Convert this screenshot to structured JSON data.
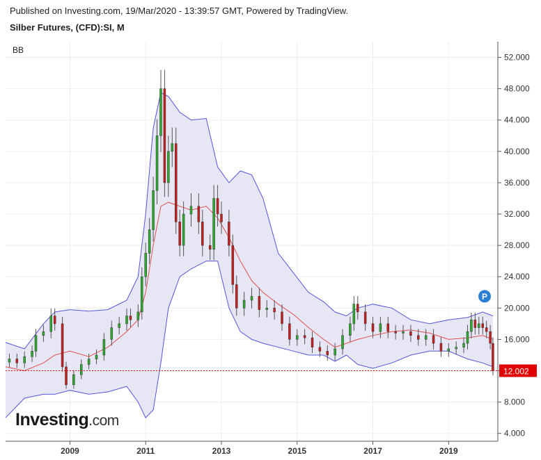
{
  "header": {
    "published": "Published on Investing.com, 19/Mar/2020 - 13:39:57 GMT, Powered by TradingView.",
    "symbol": "Silber Futures, (CFD):SI, M"
  },
  "indicator_label": "BB",
  "logo": {
    "main": "Investing",
    "suffix": ".com"
  },
  "badge_label": "P",
  "colors": {
    "up": "#2eaa2e",
    "down": "#c81e1e",
    "band": "#5555dd",
    "band_fill": "#e6e6f5",
    "basis": "#e05050",
    "price_line": "#e00000"
  },
  "chart_data": {
    "type": "candlestick",
    "title": "Silber Futures, (CFD):SI, M",
    "interval": "monthly",
    "x_range": [
      2007.3,
      2020.3
    ],
    "ylim": [
      3,
      54
    ],
    "yticks": [
      "4.000",
      "8.000",
      "12.000",
      "16.000",
      "20.000",
      "24.000",
      "28.000",
      "32.000",
      "36.000",
      "40.000",
      "44.000",
      "48.000",
      "52.000"
    ],
    "xticks": [
      "2009",
      "2011",
      "2013",
      "2015",
      "2017",
      "2019"
    ],
    "last_price": "12.002",
    "grid": true,
    "close_series": {
      "x": [
        2007.4,
        2007.6,
        2007.8,
        2008.0,
        2008.1,
        2008.3,
        2008.5,
        2008.6,
        2008.8,
        2008.9,
        2009.1,
        2009.3,
        2009.5,
        2009.7,
        2009.9,
        2010.1,
        2010.3,
        2010.5,
        2010.6,
        2010.8,
        2010.9,
        2011.0,
        2011.1,
        2011.2,
        2011.3,
        2011.4,
        2011.5,
        2011.6,
        2011.7,
        2011.8,
        2011.9,
        2012.0,
        2012.2,
        2012.4,
        2012.5,
        2012.7,
        2012.8,
        2012.9,
        2013.0,
        2013.2,
        2013.3,
        2013.4,
        2013.6,
        2013.8,
        2014.0,
        2014.2,
        2014.4,
        2014.6,
        2014.8,
        2015.0,
        2015.2,
        2015.4,
        2015.6,
        2015.8,
        2016.0,
        2016.2,
        2016.4,
        2016.5,
        2016.6,
        2016.8,
        2017.0,
        2017.2,
        2017.4,
        2017.6,
        2017.8,
        2018.0,
        2018.2,
        2018.4,
        2018.6,
        2018.8,
        2019.0,
        2019.2,
        2019.4,
        2019.5,
        2019.6,
        2019.7,
        2019.8,
        2019.9,
        2020.0,
        2020.1,
        2020.17
      ],
      "close": [
        13.5,
        13.0,
        13.8,
        14.5,
        16.5,
        17.0,
        19.0,
        18.0,
        12.5,
        10.2,
        11.5,
        12.8,
        13.5,
        14.0,
        16.0,
        17.5,
        18.0,
        19.0,
        18.5,
        19.5,
        24.0,
        27.0,
        30.0,
        35.0,
        42.0,
        48.0,
        36.0,
        40.0,
        41.0,
        31.0,
        28.0,
        32.0,
        33.0,
        31.0,
        28.0,
        27.5,
        34.0,
        32.0,
        31.0,
        28.0,
        23.0,
        20.0,
        21.0,
        21.5,
        19.8,
        20.0,
        19.5,
        18.0,
        16.0,
        16.5,
        16.2,
        15.0,
        14.5,
        14.0,
        14.8,
        16.5,
        18.0,
        20.5,
        19.5,
        18.0,
        17.0,
        18.0,
        17.0,
        16.8,
        17.0,
        16.5,
        16.0,
        16.5,
        15.5,
        14.5,
        14.8,
        15.0,
        15.5,
        17.0,
        18.5,
        17.5,
        18.0,
        17.5,
        17.0,
        15.5,
        12.0
      ]
    },
    "bollinger": {
      "x": [
        2007.3,
        2007.8,
        2008.3,
        2008.6,
        2009.0,
        2009.5,
        2010.0,
        2010.5,
        2010.8,
        2011.0,
        2011.2,
        2011.4,
        2011.6,
        2011.9,
        2012.2,
        2012.6,
        2012.9,
        2013.2,
        2013.5,
        2013.8,
        2014.1,
        2014.5,
        2014.9,
        2015.3,
        2015.7,
        2016.0,
        2016.3,
        2016.6,
        2017.0,
        2017.5,
        2018.0,
        2018.5,
        2019.0,
        2019.5,
        2019.9,
        2020.17
      ],
      "upper": [
        15.6,
        14.8,
        18.0,
        19.5,
        19.8,
        19.6,
        19.8,
        21.0,
        24.0,
        32.0,
        43.0,
        47.5,
        47.0,
        45.0,
        44.0,
        44.2,
        38.0,
        36.0,
        37.5,
        37.0,
        34.0,
        27.0,
        24.5,
        22.0,
        20.8,
        19.5,
        19.0,
        20.0,
        20.5,
        20.0,
        18.5,
        18.0,
        18.5,
        18.8,
        19.5,
        19.0
      ],
      "basis": [
        12.5,
        12.0,
        13.0,
        14.0,
        14.5,
        13.8,
        15.0,
        17.0,
        18.5,
        22.0,
        28.0,
        33.0,
        33.5,
        33.0,
        32.5,
        33.0,
        31.5,
        29.0,
        26.0,
        23.5,
        22.0,
        20.5,
        19.2,
        17.5,
        16.0,
        15.0,
        15.5,
        16.0,
        16.5,
        17.0,
        17.2,
        16.8,
        16.0,
        16.2,
        16.5,
        16.0
      ],
      "lower": [
        6.0,
        8.5,
        9.0,
        9.0,
        9.5,
        9.0,
        9.3,
        10.0,
        8.0,
        6.0,
        7.0,
        13.0,
        20.0,
        24.0,
        25.0,
        26.0,
        26.0,
        20.0,
        17.0,
        16.0,
        15.5,
        15.0,
        14.5,
        14.0,
        14.0,
        13.2,
        14.0,
        12.8,
        12.3,
        13.0,
        14.0,
        14.5,
        14.5,
        13.5,
        13.0,
        12.5
      ]
    }
  }
}
